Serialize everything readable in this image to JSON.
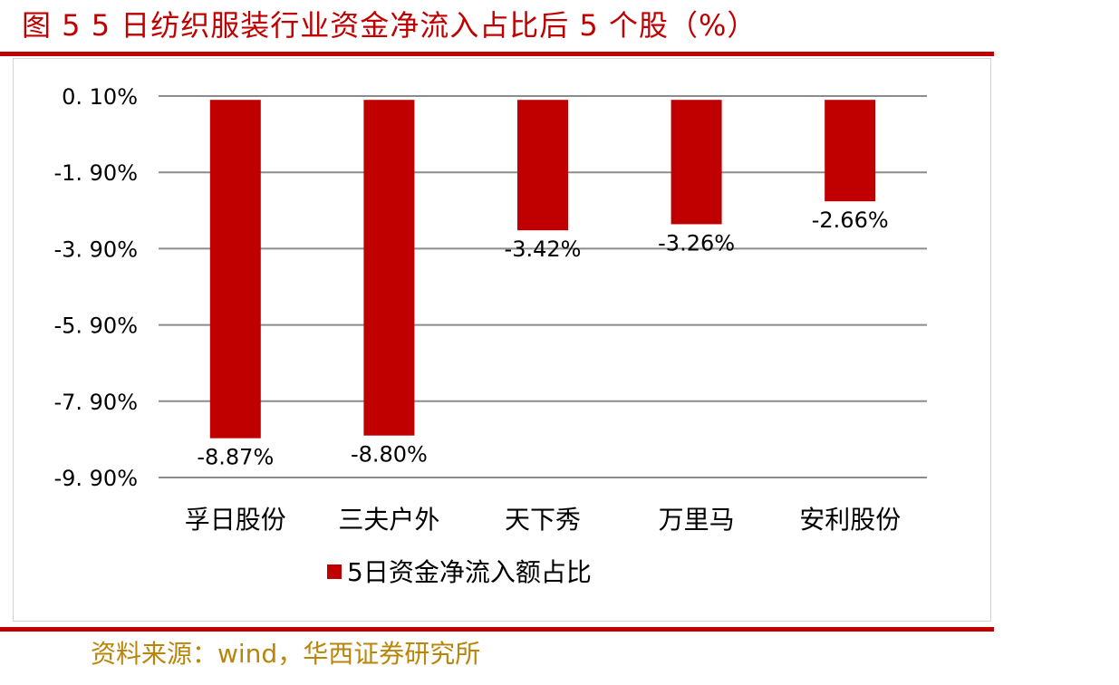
{
  "figure": {
    "title": "图 5 5 日纺织服装行业资金净流入占比后 5 个股（%）",
    "source": "资料来源：wind，华西证券研究所"
  },
  "colors": {
    "accent": "#c00000",
    "bar": "#c00000",
    "grid": "#8c8c8c",
    "source_text": "#b8860b"
  },
  "chart_data": {
    "type": "bar",
    "categories": [
      "孚日股份",
      "三夫户外",
      "天下秀",
      "万里马",
      "安利股份"
    ],
    "series": [
      {
        "name": "5日资金净流入额占比",
        "values": [
          -8.87,
          -8.8,
          -3.42,
          -3.26,
          -2.66
        ],
        "data_labels": [
          "-8.87%",
          "-8.80%",
          "-3.42%",
          "-3.26%",
          "-2.66%"
        ]
      }
    ],
    "y_ticks": [
      0.1,
      -1.9,
      -3.9,
      -5.9,
      -7.9,
      -9.9
    ],
    "y_tick_labels": [
      "0. 10%",
      "-1. 90%",
      "-3. 90%",
      "-5. 90%",
      "-7. 90%",
      "-9. 90%"
    ],
    "ylim": [
      -9.9,
      0.1
    ],
    "grid": true,
    "legend_position": "bottom",
    "xlabel": "",
    "ylabel": ""
  }
}
